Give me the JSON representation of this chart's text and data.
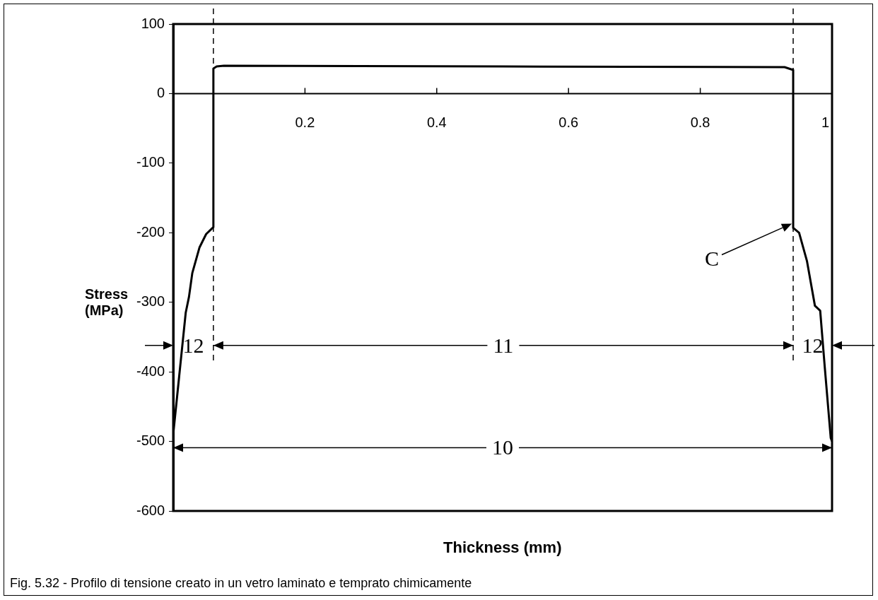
{
  "chart_data": {
    "type": "line",
    "xlabel": "Thickness (mm)",
    "ylabel": "Stress\n(MPa)",
    "series": [
      {
        "color": "#000000",
        "x": [
          0,
          0.019,
          0.024,
          0.029,
          0.04,
          0.05,
          0.061,
          0.061,
          0.066,
          0.077,
          0.5,
          0.928,
          0.941,
          0.941,
          0.95,
          0.962,
          0.974,
          0.982,
          0.989,
          0.998,
          1
        ],
        "values": [
          -490,
          -315,
          -292,
          -258,
          -221,
          -202,
          -192,
          36,
          39,
          40,
          39,
          38,
          34,
          -193,
          -200,
          -241,
          -305,
          -312,
          -394,
          -495,
          -500
        ]
      }
    ],
    "xlim": [
      0,
      1
    ],
    "xticks": [
      0.2,
      0.4,
      0.6,
      0.8,
      1
    ],
    "ylim": [
      -600,
      100
    ],
    "yticks": [
      -600,
      -500,
      -400,
      -300,
      -200,
      -100,
      0,
      100
    ],
    "ref_lines": [
      {
        "axis": "x",
        "value": 0.061,
        "color": "#000000",
        "line_style": "dashed"
      },
      {
        "axis": "x",
        "value": 0.941,
        "color": "#000000",
        "line_style": "dashed"
      }
    ],
    "annotations": [
      "12",
      "11",
      "12",
      "10",
      "C",
      "Fig. 5.32 - Profilo di tensione creato in un vetro laminato e temprato chimicamente"
    ],
    "grid": false,
    "legend": false,
    "marker": "none",
    "line_style": "solid"
  }
}
